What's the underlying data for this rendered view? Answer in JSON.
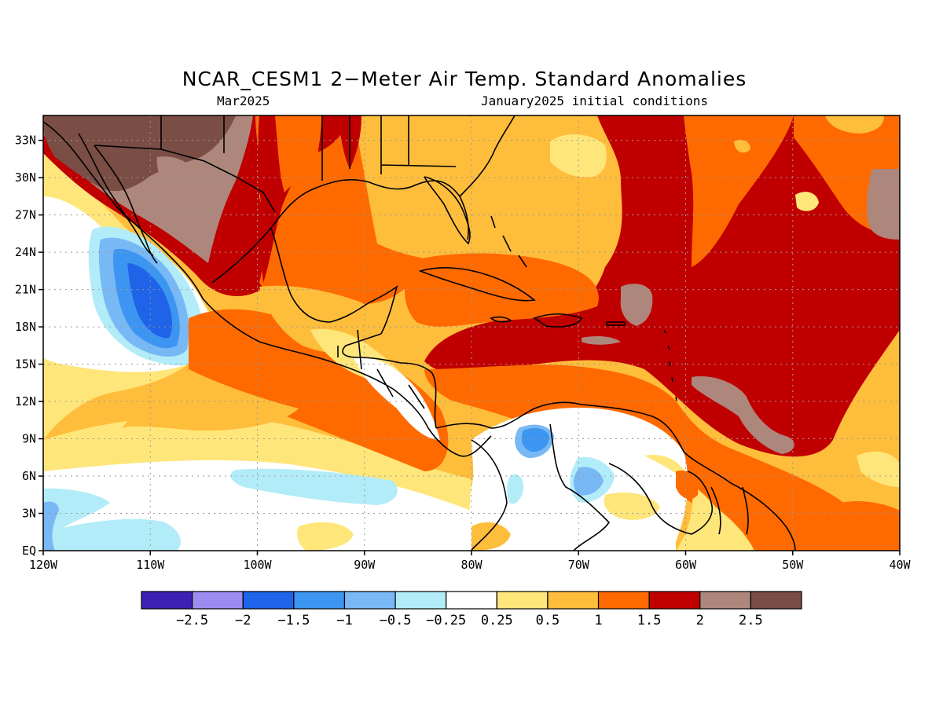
{
  "title": "NCAR_CESM1 2−Meter Air Temp. Standard Anomalies",
  "subtitle_left": "Mar2025",
  "subtitle_right": "January2025 initial conditions",
  "map": {
    "lon_range": [
      -120,
      -40
    ],
    "lat_range": [
      0,
      35
    ],
    "lon_ticks": [
      {
        "value": -120,
        "label": "120W"
      },
      {
        "value": -110,
        "label": "110W"
      },
      {
        "value": -100,
        "label": "100W"
      },
      {
        "value": -90,
        "label": "90W"
      },
      {
        "value": -80,
        "label": "80W"
      },
      {
        "value": -70,
        "label": "70W"
      },
      {
        "value": -60,
        "label": "60W"
      },
      {
        "value": -50,
        "label": "50W"
      },
      {
        "value": -40,
        "label": "40W"
      }
    ],
    "lat_ticks": [
      {
        "value": 0,
        "label": "EQ"
      },
      {
        "value": 3,
        "label": "3N"
      },
      {
        "value": 6,
        "label": "6N"
      },
      {
        "value": 9,
        "label": "9N"
      },
      {
        "value": 12,
        "label": "12N"
      },
      {
        "value": 15,
        "label": "15N"
      },
      {
        "value": 18,
        "label": "18N"
      },
      {
        "value": 21,
        "label": "21N"
      },
      {
        "value": 24,
        "label": "24N"
      },
      {
        "value": 27,
        "label": "27N"
      },
      {
        "value": 30,
        "label": "30N"
      },
      {
        "value": 33,
        "label": "33N"
      }
    ],
    "grid": true
  },
  "colorbar": {
    "colors": [
      "#3b22b4",
      "#9c8cf2",
      "#1f63e8",
      "#3c95f0",
      "#78b8f5",
      "#b2ecf8",
      "#ffffff",
      "#ffe67a",
      "#ffbd3c",
      "#ff6a00",
      "#c00000",
      "#ad867c",
      "#7a4d45"
    ],
    "labels": [
      "−2.5",
      "−2",
      "−1.5",
      "−1",
      "−0.5",
      "−0.25",
      "0.25",
      "0.5",
      "1",
      "1.5",
      "2",
      "2.5"
    ]
  },
  "palette": {
    "very_hot": "#7a4d45",
    "hot": "#ad867c",
    "red": "#c00000",
    "orange": "#ff6a00",
    "light_orange": "#ffbd3c",
    "yellow": "#ffe67a",
    "neutral": "#ffffff",
    "light_blue": "#b2ecf8",
    "mid_blue": "#78b8f5",
    "blue": "#3c95f0",
    "deep_blue": "#1f63e8"
  }
}
